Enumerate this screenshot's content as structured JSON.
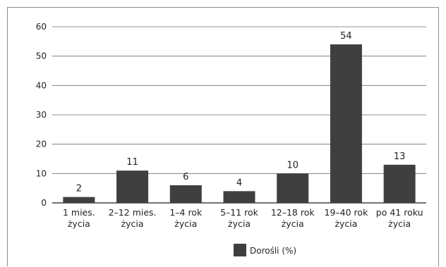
{
  "chart_data": {
    "type": "bar",
    "categories": [
      [
        "1 mies.",
        "życia"
      ],
      [
        "2–12 mies.",
        "życia"
      ],
      [
        "1–4 rok",
        "życia"
      ],
      [
        "5–11 rok",
        "życia"
      ],
      [
        "12–18 rok",
        "życia"
      ],
      [
        "19–40 rok",
        "życia"
      ],
      [
        "po 41 roku",
        "życia"
      ]
    ],
    "series": [
      {
        "name": "Dorośli (%)",
        "values": [
          2,
          11,
          6,
          4,
          10,
          54,
          13
        ],
        "color": "#3f3f3f"
      }
    ],
    "data_labels": [
      "2",
      "11",
      "6",
      "4",
      "10",
      "54",
      "13"
    ],
    "ylim": [
      0,
      60
    ],
    "yticks": [
      0,
      10,
      20,
      30,
      40,
      50,
      60
    ],
    "grid": true,
    "legend_position": "bottom-center"
  }
}
